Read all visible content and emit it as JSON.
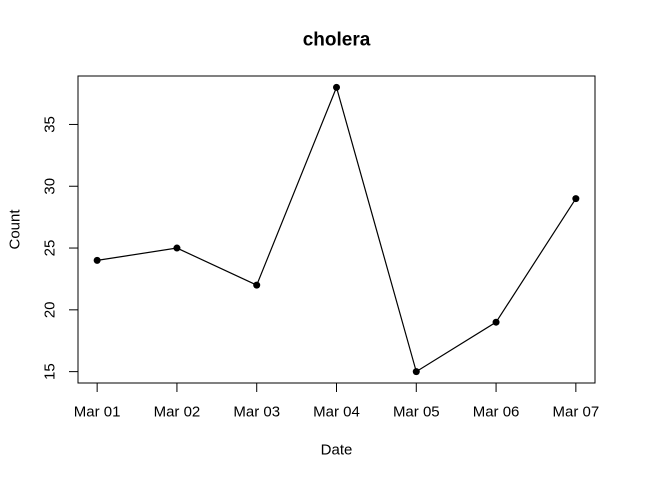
{
  "chart_data": {
    "type": "line",
    "title": "cholera",
    "xlabel": "Date",
    "ylabel": "Count",
    "categories": [
      "Mar 01",
      "Mar 02",
      "Mar 03",
      "Mar 04",
      "Mar 05",
      "Mar 06",
      "Mar 07"
    ],
    "values": [
      24,
      25,
      22,
      38,
      15,
      19,
      29
    ],
    "yticks": [
      15,
      20,
      25,
      30,
      35
    ],
    "ylim": [
      14.08,
      38.92
    ],
    "xlim_index": [
      -0.24,
      6.24
    ],
    "grid": false,
    "legend": "none",
    "line_color": "#000000",
    "marker": "filled-circle",
    "marker_color": "#000000",
    "axis_color": "#000000",
    "background": "#ffffff"
  }
}
